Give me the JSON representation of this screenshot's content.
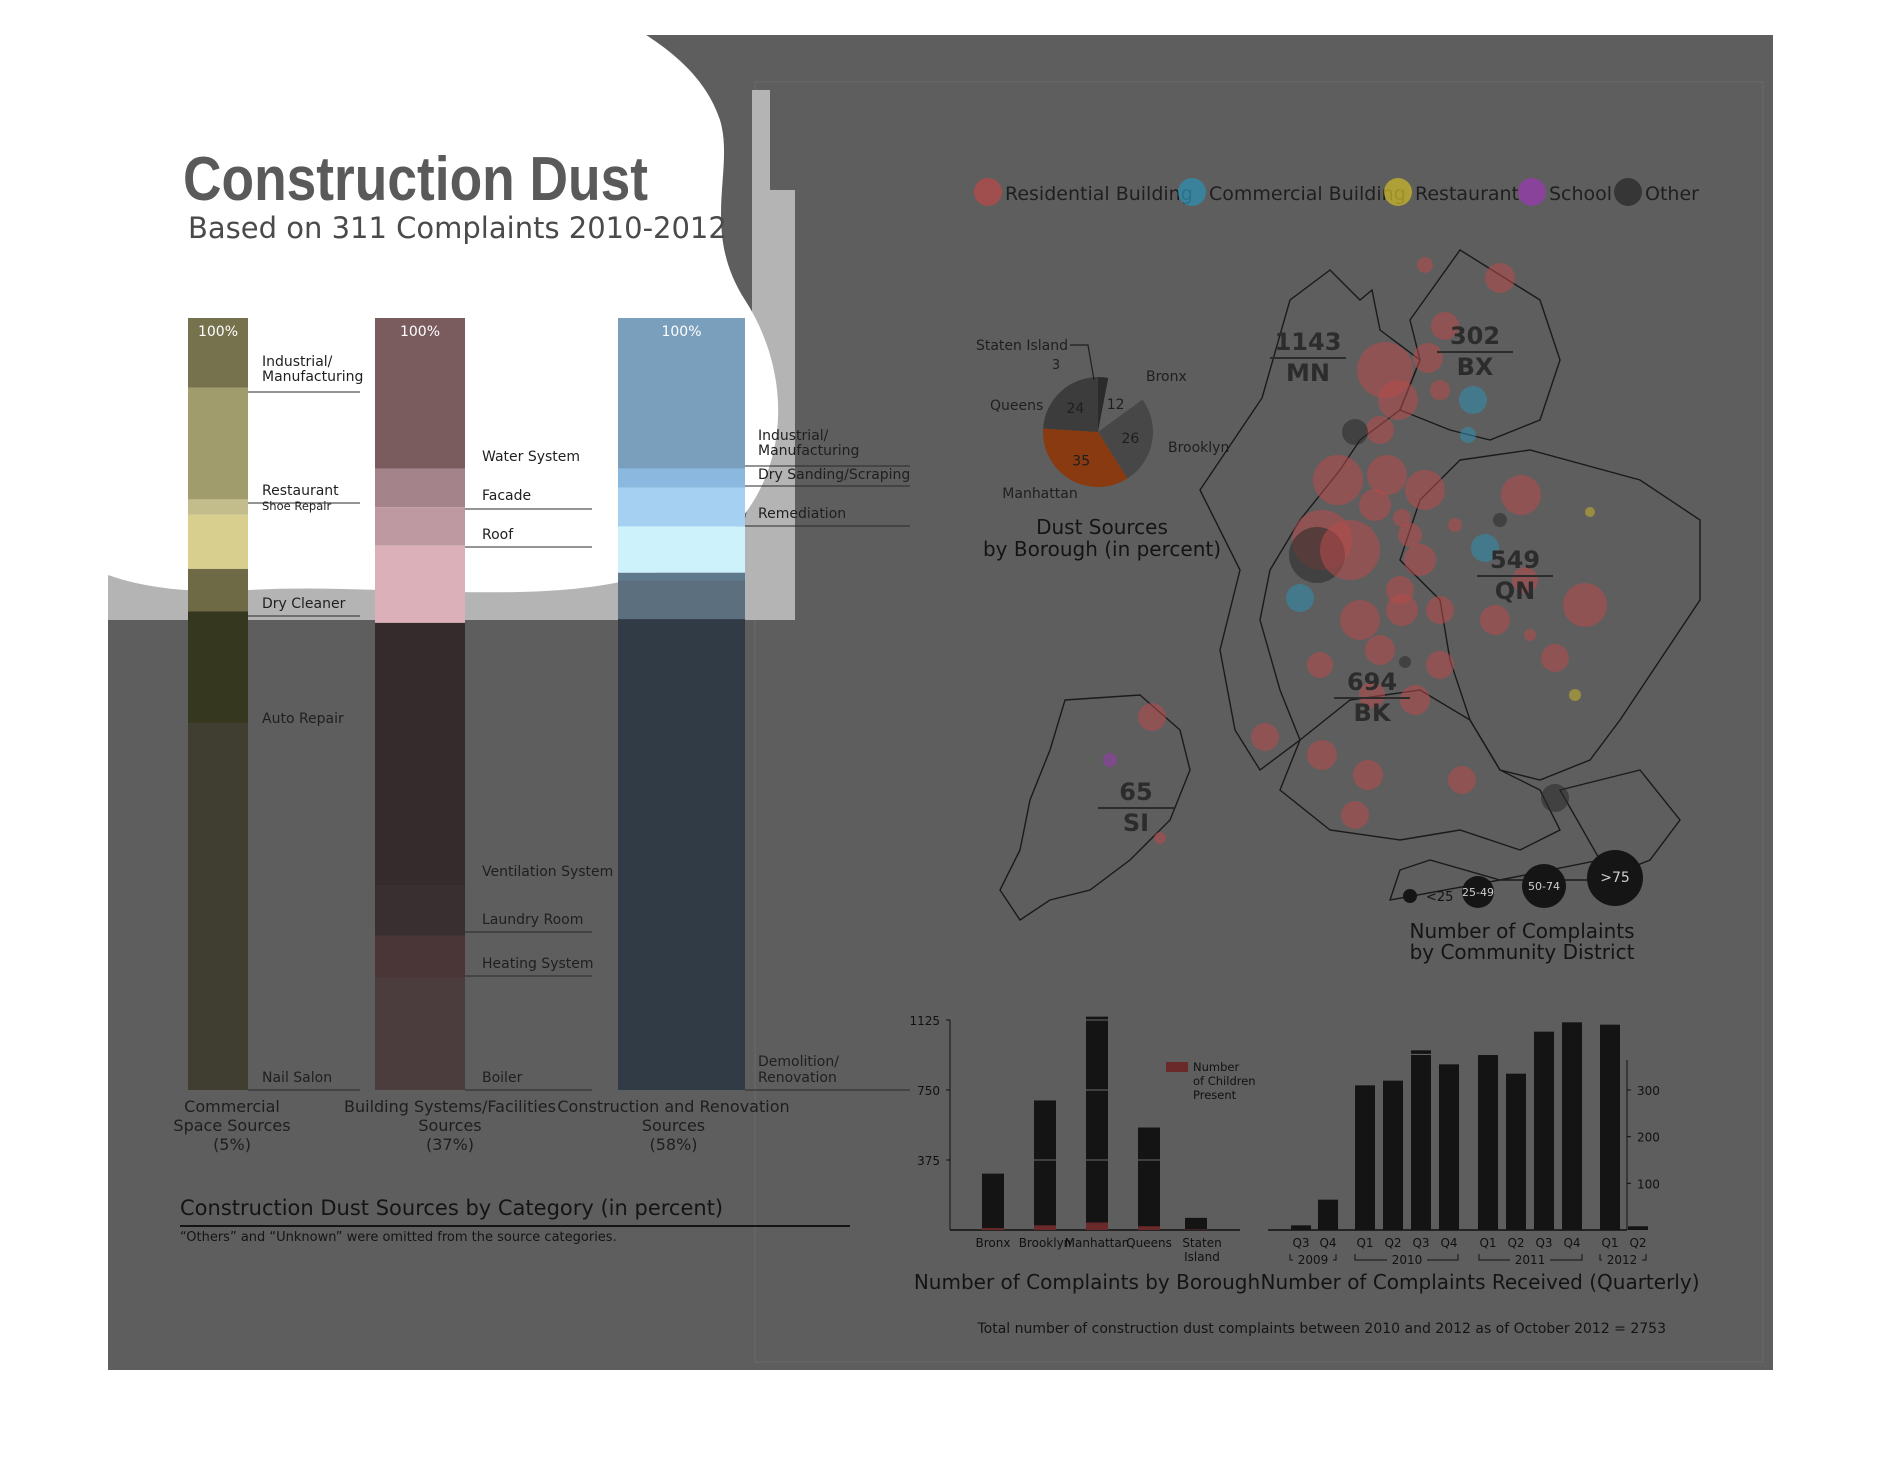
{
  "header": {
    "title": "Construction Dust",
    "subtitle": "Based on 311 Complaints 2010-2012"
  },
  "colors": {
    "residential": "#b84a4a",
    "commercial": "#2f8fb0",
    "restaurant": "#c9b52a",
    "school": "#9a3bb0",
    "other": "#2a2a2a"
  },
  "category_chart": {
    "title": "Construction Dust Sources by Category (in percent)",
    "note": "“Others” and “Unknown” were omitted from the source categories.",
    "columns": [
      {
        "top_label": "100%",
        "caption": [
          "Commercial",
          "Space Sources",
          "(5%)"
        ],
        "segments": [
          {
            "label": "Industrial/ Manufacturing",
            "pct": 9.0,
            "color": "#77724e"
          },
          {
            "label": "Restaurant",
            "pct": 14.5,
            "color": "#a09c6c"
          },
          {
            "label": "Shoe Repair",
            "pct": 2.0,
            "color": "#c2bd8a"
          },
          {
            "label": "",
            "pct": 7.0,
            "color": "#d8cf8f"
          },
          {
            "label": "Dry Cleaner",
            "pct": 5.5,
            "color": "#6e6a45"
          },
          {
            "label": "Auto Repair",
            "pct": 14.5,
            "color": "#36371f"
          },
          {
            "label": "Nail Salon",
            "pct": 47.5,
            "color": "#403e30"
          }
        ],
        "label_texts": [
          "Industrial/",
          "Manufacturing",
          "Restaurant",
          "Shoe Repair",
          "Dry Cleaner",
          "Auto Repair",
          "Nail Salon"
        ]
      },
      {
        "top_label": "100%",
        "caption": [
          "Building Systems/Facilities",
          "Sources",
          "(37%)"
        ],
        "segments": [
          {
            "label": "Water System",
            "pct": 19.5,
            "color": "#7a5c5f"
          },
          {
            "label": "Facade",
            "pct": 5.0,
            "color": "#a4838a"
          },
          {
            "label": "Roof",
            "pct": 5.0,
            "color": "#be99a1"
          },
          {
            "label": "",
            "pct": 10.0,
            "color": "#dcb0b8"
          },
          {
            "label": "Ventilation System",
            "pct": 34.0,
            "color": "#352b2d"
          },
          {
            "label": "Laundry Room",
            "pct": 6.5,
            "color": "#392e30"
          },
          {
            "label": "Heating System",
            "pct": 5.5,
            "color": "#4a3637"
          },
          {
            "label": "Boiler",
            "pct": 14.5,
            "color": "#4b3c3e"
          }
        ],
        "label_texts": [
          "Water System",
          "Facade",
          "Roof",
          "Ventilation System",
          "Laundry Room",
          "Heating System",
          "Boiler"
        ]
      },
      {
        "top_label": "100%",
        "caption": [
          "Construction and Renovation",
          "Sources",
          "(58%)"
        ],
        "segments": [
          {
            "label": "Industrial/ Manufacturing",
            "pct": 19.5,
            "color": "#7a9fbd"
          },
          {
            "label": "Dry Sanding/Scraping",
            "pct": 2.5,
            "color": "#8ab8de"
          },
          {
            "label": "Remediation",
            "pct": 5.0,
            "color": "#a6d0f1"
          },
          {
            "label": "",
            "pct": 6.0,
            "color": "#cdf2fb"
          },
          {
            "label": "",
            "pct": 1.0,
            "color": "#5f7a8d"
          },
          {
            "label": "",
            "pct": 5.0,
            "color": "#5b6f7f"
          },
          {
            "label": "Demolition/ Renovation",
            "pct": 61.0,
            "color": "#313b46"
          }
        ],
        "label_texts": [
          "Industrial/",
          "Manufacturing",
          "Dry Sanding/Scraping",
          "Remediation",
          "Demolition/",
          "Renovation"
        ]
      }
    ]
  },
  "legend": {
    "items": [
      "Residential Building",
      "Commercial Building",
      "Restaurant",
      "School",
      "Other"
    ]
  },
  "pie": {
    "title_lines": [
      "Dust Sources",
      "by Borough (in percent)"
    ],
    "slices": [
      {
        "label": "Staten Island",
        "value": 3,
        "color": "#2b2b2b"
      },
      {
        "label": "Bronx",
        "value": 12,
        "color": "#5e5e5e"
      },
      {
        "label": "Brooklyn",
        "value": 26,
        "color": "#474747"
      },
      {
        "label": "Manhattan",
        "value": 35,
        "color": "#8a3a10"
      },
      {
        "label": "Queens",
        "value": 24,
        "color": "#3c3c3c"
      }
    ]
  },
  "map": {
    "borough_labels": [
      {
        "value": "1143",
        "abbr": "MN"
      },
      {
        "value": "302",
        "abbr": "BX"
      },
      {
        "value": "549",
        "abbr": "QN"
      },
      {
        "value": "694",
        "abbr": "BK"
      },
      {
        "value": "65",
        "abbr": "SI"
      }
    ],
    "size_legend": [
      "<25",
      "25-49",
      "50-74",
      ">75"
    ],
    "title_lines": [
      "Number of Complaints",
      "by Community District"
    ]
  },
  "chart_data": [
    {
      "type": "bar",
      "title": "Number of Complaints by Borough",
      "categories": [
        "Bronx",
        "Brooklyn",
        "Manhattan",
        "Queens",
        "Staten Island"
      ],
      "series": [
        {
          "name": "",
          "values": [
            302,
            694,
            1143,
            549,
            65
          ]
        },
        {
          "name": "Number of Children Present",
          "values": [
            10,
            25,
            40,
            20,
            3
          ]
        }
      ],
      "y_ticks": [
        375,
        750,
        1125
      ],
      "ylim": [
        0,
        1125
      ],
      "legend_lines": [
        "Number",
        "of Children",
        "Present"
      ]
    },
    {
      "type": "bar",
      "title": "Number of Complaints Received (Quarterly)",
      "categories": [
        "Q3",
        "Q4",
        "Q1",
        "Q2",
        "Q3",
        "Q4",
        "Q1",
        "Q2",
        "Q3",
        "Q4",
        "Q1",
        "Q2"
      ],
      "year_labels": [
        "2009",
        "2010",
        "2011",
        "2012"
      ],
      "values": [
        10,
        65,
        310,
        320,
        385,
        355,
        375,
        335,
        425,
        445,
        440,
        8
      ],
      "y_ticks": [
        100,
        200,
        300
      ],
      "ylim": [
        0,
        440
      ]
    }
  ],
  "footer": {
    "total_text": "Total number of construction dust complaints between 2010 and 2012 as of October 2012 = 2753"
  }
}
